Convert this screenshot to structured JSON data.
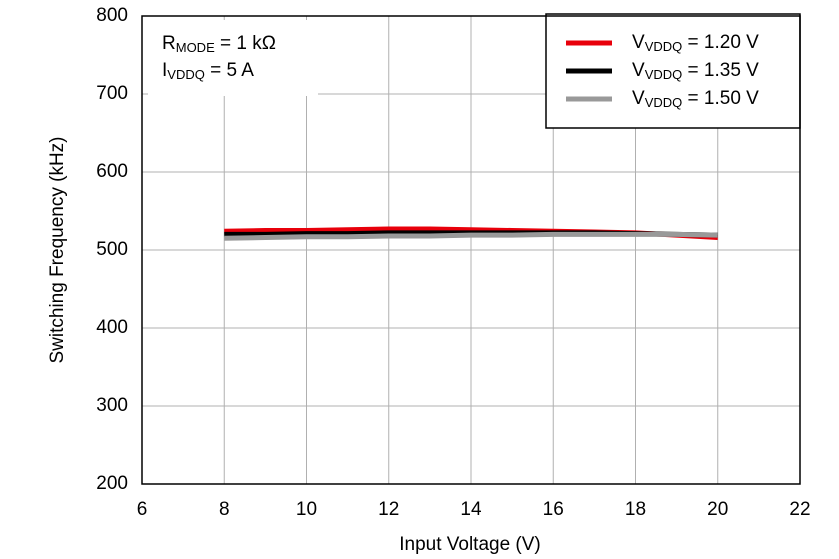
{
  "chart_data": {
    "type": "line",
    "xlabel": "Input Voltage (V)",
    "ylabel": "Switching Frequency (kHz)",
    "x": [
      8,
      9,
      10,
      11,
      12,
      13,
      14,
      15,
      16,
      17,
      18,
      19,
      20
    ],
    "series": [
      {
        "name": [
          {
            "text": "V"
          },
          {
            "text": "VDDQ",
            "sub": true
          },
          {
            "text": " = 1.20 V"
          }
        ],
        "color": "#e8000b",
        "values": [
          524,
          525,
          525,
          526,
          527,
          527,
          526,
          525,
          524,
          523,
          522,
          519,
          516
        ]
      },
      {
        "name": [
          {
            "text": "V"
          },
          {
            "text": "VDDQ",
            "sub": true
          },
          {
            "text": " = 1.35 V"
          }
        ],
        "color": "#000000",
        "values": [
          520,
          520,
          521,
          521,
          522,
          522,
          522,
          522,
          522,
          522,
          521,
          520,
          519
        ]
      },
      {
        "name": [
          {
            "text": "V"
          },
          {
            "text": "VDDQ",
            "sub": true
          },
          {
            "text": " = 1.50 V"
          }
        ],
        "color": "#999999",
        "values": [
          515,
          516,
          517,
          517,
          518,
          518,
          519,
          519,
          520,
          520,
          520,
          520,
          519
        ]
      }
    ],
    "annotations": [
      [
        {
          "text": "R"
        },
        {
          "text": "MODE",
          "sub": true
        },
        {
          "text": " = 1 kΩ"
        }
      ],
      [
        {
          "text": "I"
        },
        {
          "text": "VDDQ",
          "sub": true
        },
        {
          "text": " = 5 A"
        }
      ]
    ],
    "xlim": [
      6,
      22
    ],
    "xticks": [
      6,
      8,
      10,
      12,
      14,
      16,
      18,
      20,
      22
    ],
    "ylim": [
      200,
      800
    ],
    "yticks": [
      200,
      300,
      400,
      500,
      600,
      700,
      800
    ],
    "grid": true,
    "legend": "upper right"
  }
}
